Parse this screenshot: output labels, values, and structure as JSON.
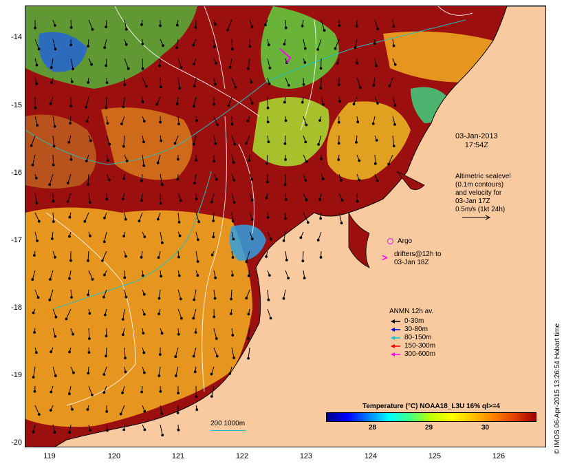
{
  "axes": {
    "y_ticks": [
      "-14",
      "-15",
      "-16",
      "-17",
      "-18",
      "-19",
      "-20"
    ],
    "x_ticks": [
      "119",
      "120",
      "121",
      "122",
      "123",
      "124",
      "125",
      "126"
    ]
  },
  "timestamp": {
    "date": "03-Jan-2013",
    "time": "17:54Z"
  },
  "altimetry_note": [
    "Altimetric sealevel",
    "(0.1m contours)",
    "and velocity for",
    "03-Jan 17Z",
    "0.5m/s (1kt 24h)"
  ],
  "argo_label": "Argo",
  "drifters_label": [
    "drifters@12h to",
    "03-Jan 18Z"
  ],
  "anmn": {
    "title": "ANMN 12h av.",
    "items": [
      {
        "label": "0-30m",
        "color": "#000000"
      },
      {
        "label": "30-80m",
        "color": "#0000ff"
      },
      {
        "label": "80-150m",
        "color": "#00cccc"
      },
      {
        "label": "150-300m",
        "color": "#ff0000"
      },
      {
        "label": "300-600m",
        "color": "#ff00ff"
      }
    ]
  },
  "colorbar": {
    "title": "Temperature (°C) NOAA18_L3U 16% ql>=4",
    "ticks": [
      "28",
      "29",
      "30"
    ],
    "colors": [
      "#00008b",
      "#0000ff",
      "#0080ff",
      "#00ffff",
      "#40ff80",
      "#c0ff00",
      "#ffff00",
      "#ffc000",
      "#ff8000",
      "#e04000",
      "#a00000"
    ]
  },
  "isobath_label": "200  1000m",
  "credit": "© IMOS 06-Apr-2015 13:26:54 Hobart time",
  "colors": {
    "land": "#f9c9a0",
    "warm": "#9c0f0f",
    "orange": "#e6961e",
    "green": "#4cc840",
    "cyan": "#20c0c0"
  }
}
